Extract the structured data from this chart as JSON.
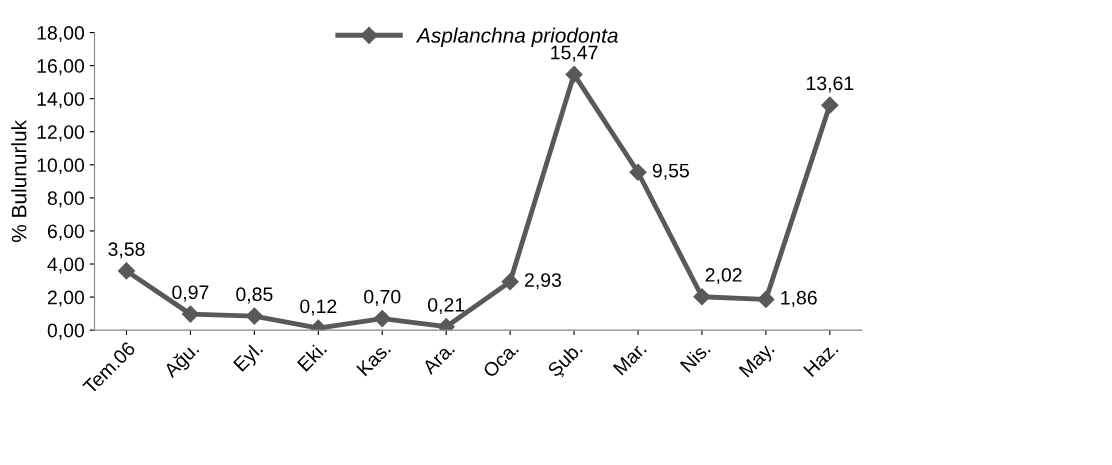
{
  "chart_data": {
    "type": "line",
    "ylabel": "% Bulunurluk",
    "categories": [
      "Tem.06",
      "Ağu.",
      "Eyl.",
      "Eki.",
      "Kas.",
      "Ara.",
      "Oca.",
      "Şub.",
      "Mar.",
      "Nis.",
      "May.",
      "Haz."
    ],
    "series": [
      {
        "name": "Asplanchna priodonta",
        "color": "#595959",
        "values": [
          3.58,
          0.97,
          0.85,
          0.12,
          0.7,
          0.21,
          2.93,
          15.47,
          9.55,
          2.02,
          1.86,
          13.61
        ],
        "value_labels": [
          "3,58",
          "0,97",
          "0,85",
          "0,12",
          "0,70",
          "0,21",
          "2,93",
          "15,47",
          "9,55",
          "2,02",
          "1,86",
          "13,61"
        ]
      }
    ],
    "ylim": [
      0,
      18
    ],
    "yticks": [
      {
        "value": 0,
        "label": "0,00"
      },
      {
        "value": 2,
        "label": "2,00"
      },
      {
        "value": 4,
        "label": "4,00"
      },
      {
        "value": 6,
        "label": "6,00"
      },
      {
        "value": 8,
        "label": "8,00"
      },
      {
        "value": 10,
        "label": "10,00"
      },
      {
        "value": 12,
        "label": "12,00"
      },
      {
        "value": 14,
        "label": "14,00"
      },
      {
        "value": 16,
        "label": "16,00"
      },
      {
        "value": 18,
        "label": "18,00"
      }
    ],
    "grid": false,
    "legend": "top",
    "marker": "diamond",
    "line_style": "solid"
  }
}
